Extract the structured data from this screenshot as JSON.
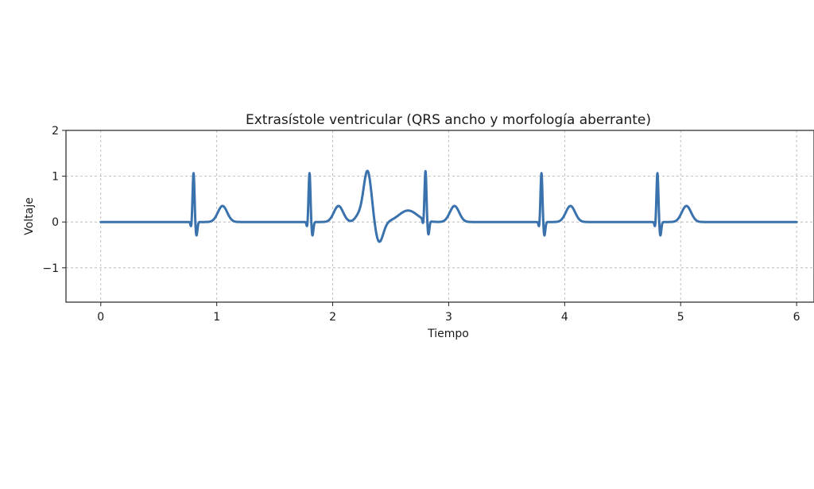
{
  "chart_data": {
    "type": "line",
    "title": "Extrasístole ventricular (QRS ancho y morfología aberrante)",
    "xlabel": "Tiempo",
    "ylabel": "Voltaje",
    "xlim": [
      -0.3,
      6.15
    ],
    "ylim": [
      -1.75,
      2.0
    ],
    "xticks": [
      0,
      1,
      2,
      3,
      4,
      5,
      6
    ],
    "xtick_labels": [
      "0",
      "1",
      "2",
      "3",
      "4",
      "5",
      "6"
    ],
    "yticks": [
      -1,
      0,
      1,
      2
    ],
    "ytick_labels": [
      "−1",
      "0",
      "1",
      "2"
    ],
    "grid": true,
    "line_color": "#3a72ad",
    "series": [
      {
        "x_range": [
          0,
          6
        ],
        "normal_beats": [
          {
            "r_time": 0.8,
            "r_amplitude": 0.97,
            "q_amplitude": -0.12,
            "s_amplitude": -0.3,
            "t_time": 1.05,
            "t_amplitude": 0.35
          },
          {
            "r_time": 1.8,
            "r_amplitude": 0.97,
            "q_amplitude": -0.12,
            "s_amplitude": -0.3,
            "t_time": 2.05,
            "t_amplitude": 0.35
          },
          {
            "r_time": 2.8,
            "r_amplitude": 0.97,
            "q_amplitude": -0.12,
            "s_amplitude": -0.3,
            "t_time": 3.05,
            "t_amplitude": 0.35
          },
          {
            "r_time": 3.8,
            "r_amplitude": 0.97,
            "q_amplitude": -0.12,
            "s_amplitude": -0.3,
            "t_time": 4.05,
            "t_amplitude": 0.35
          },
          {
            "r_time": 4.8,
            "r_amplitude": 0.97,
            "q_amplitude": -0.12,
            "s_amplitude": -0.3,
            "t_time": 5.05,
            "t_amplitude": 0.35
          }
        ],
        "ectopic_beat": {
          "peak_time": 2.3,
          "peak_amplitude": 1.22,
          "trough_time": 2.4,
          "trough_amplitude": -0.4,
          "t_time": 2.65,
          "t_amplitude": 0.25
        }
      }
    ]
  }
}
